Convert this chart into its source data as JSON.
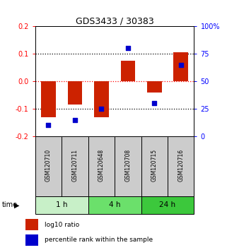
{
  "title": "GDS3433 / 30383",
  "samples": [
    "GSM120710",
    "GSM120711",
    "GSM120648",
    "GSM120708",
    "GSM120715",
    "GSM120716"
  ],
  "log10_ratio": [
    -0.13,
    -0.085,
    -0.13,
    0.075,
    -0.04,
    0.105
  ],
  "percentile_rank": [
    10,
    15,
    25,
    80,
    30,
    65
  ],
  "ylim_left": [
    -0.2,
    0.2
  ],
  "ylim_right": [
    0,
    100
  ],
  "yticks_left": [
    -0.2,
    -0.1,
    0.0,
    0.1,
    0.2
  ],
  "yticks_right": [
    0,
    25,
    50,
    75,
    100
  ],
  "ytick_labels_right": [
    "0",
    "25",
    "50",
    "75",
    "100%"
  ],
  "dotted_lines": [
    -0.1,
    0.1
  ],
  "zero_line_color": "red",
  "time_groups": [
    {
      "label": "1 h",
      "start": 0,
      "end": 2,
      "color": "#c8f0c8"
    },
    {
      "label": "4 h",
      "start": 2,
      "end": 4,
      "color": "#6be06b"
    },
    {
      "label": "24 h",
      "start": 4,
      "end": 6,
      "color": "#3cc83c"
    }
  ],
  "bar_color": "#cc2200",
  "dot_color": "#0000cc",
  "bar_width": 0.55,
  "dot_size": 22,
  "sample_box_color": "#cccccc",
  "legend_labels": [
    "log10 ratio",
    "percentile rank within the sample"
  ]
}
